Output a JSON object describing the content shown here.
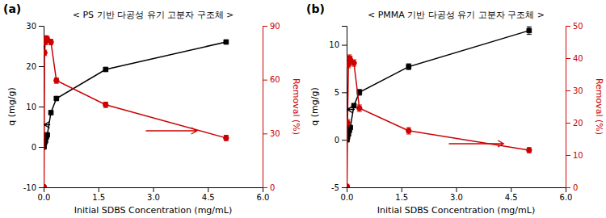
{
  "chart_data": [
    {
      "type": "line",
      "label": "(a)",
      "title": "< PS 기반 다공성 유기 고분자 구조체 >",
      "x_label": "Initial SDBS Concentration (mg/mL)",
      "y_label": "q (mg/g)",
      "y2_label": "Removal (%)",
      "x": [
        0.01,
        0.025,
        0.05,
        0.075,
        0.1,
        0.2,
        0.35,
        1.7,
        5.0
      ],
      "series": [
        {
          "axis": "y",
          "color": "#000000",
          "marker": "square",
          "values": [
            0.0,
            1.0,
            1.5,
            2.5,
            3.0,
            8.5,
            12.0,
            19.2,
            26.0
          ],
          "errors": [
            0.1,
            0.2,
            0.2,
            0.2,
            0.2,
            0.3,
            0.4,
            0.4,
            0.5
          ]
        },
        {
          "axis": "y2",
          "color": "#cc0000",
          "marker": "circle",
          "values": [
            0.3,
            75.0,
            81.0,
            83.0,
            82.5,
            81.0,
            59.5,
            46.0,
            27.5
          ],
          "errors": [
            0.3,
            1.5,
            1.5,
            1.5,
            1.5,
            1.5,
            1.5,
            1.5,
            1.5
          ]
        }
      ],
      "xlim": [
        0.0,
        6.0
      ],
      "xticks": [
        {
          "value": 0,
          "label": "0.0"
        },
        1.5,
        {
          "value": 3,
          "label": "3.0"
        },
        4.5,
        {
          "value": 6,
          "label": "6.0"
        }
      ],
      "ylim": [
        -10,
        30
      ],
      "yticks": [
        -10,
        0,
        10,
        20,
        30
      ],
      "y2lim": [
        0,
        90
      ],
      "y2ticks": [
        0,
        30,
        60,
        90
      ],
      "arrows": [
        {
          "axis": "y",
          "color": "#000000",
          "x_from": 0.18,
          "x_to": 0.01,
          "y": 5.5
        },
        {
          "axis": "y2",
          "color": "#cc0000",
          "x_from": 2.8,
          "x_to": 4.2,
          "y": 31.5
        }
      ],
      "grid": false
    },
    {
      "type": "line",
      "label": "(b)",
      "title": "< PMMA 기반 다공성 유기 고분자 구조체 >",
      "x_label": "Initial SDBS Concentration (mg/mL)",
      "y_label": "q (mg/g)",
      "y2_label": "Removal (%)",
      "x": [
        0.01,
        0.025,
        0.05,
        0.075,
        0.1,
        0.2,
        0.35,
        1.7,
        5.0
      ],
      "series": [
        {
          "axis": "y",
          "color": "#000000",
          "marker": "square",
          "values": [
            0.0,
            0.3,
            0.6,
            1.0,
            1.3,
            3.6,
            5.0,
            7.7,
            11.5
          ],
          "errors": [
            0.05,
            0.1,
            0.1,
            0.15,
            0.15,
            0.2,
            0.3,
            0.3,
            0.4
          ]
        },
        {
          "axis": "y2",
          "color": "#cc0000",
          "marker": "circle",
          "values": [
            0.3,
            20.0,
            38.0,
            40.0,
            39.5,
            38.5,
            24.5,
            17.5,
            11.5
          ],
          "errors": [
            0.3,
            1.0,
            1.0,
            1.0,
            1.0,
            1.0,
            1.0,
            1.0,
            0.8
          ]
        }
      ],
      "xlim": [
        0.0,
        6.0
      ],
      "xticks": [
        {
          "value": 0,
          "label": "0.0"
        },
        1.5,
        {
          "value": 3,
          "label": "3.0"
        },
        4.5,
        {
          "value": 6,
          "label": "6.0"
        }
      ],
      "ylim": [
        -5,
        12
      ],
      "yticks": [
        -5,
        0,
        5,
        10
      ],
      "y2lim": [
        0,
        50
      ],
      "y2ticks": [
        0,
        10,
        20,
        30,
        40,
        50
      ],
      "arrows": [
        {
          "axis": "y",
          "color": "#000000",
          "x_from": 0.22,
          "x_to": 0.01,
          "y": 3.2
        },
        {
          "axis": "y2",
          "color": "#cc0000",
          "x_from": 2.8,
          "x_to": 4.3,
          "y": 13.5
        }
      ],
      "grid": false
    }
  ]
}
